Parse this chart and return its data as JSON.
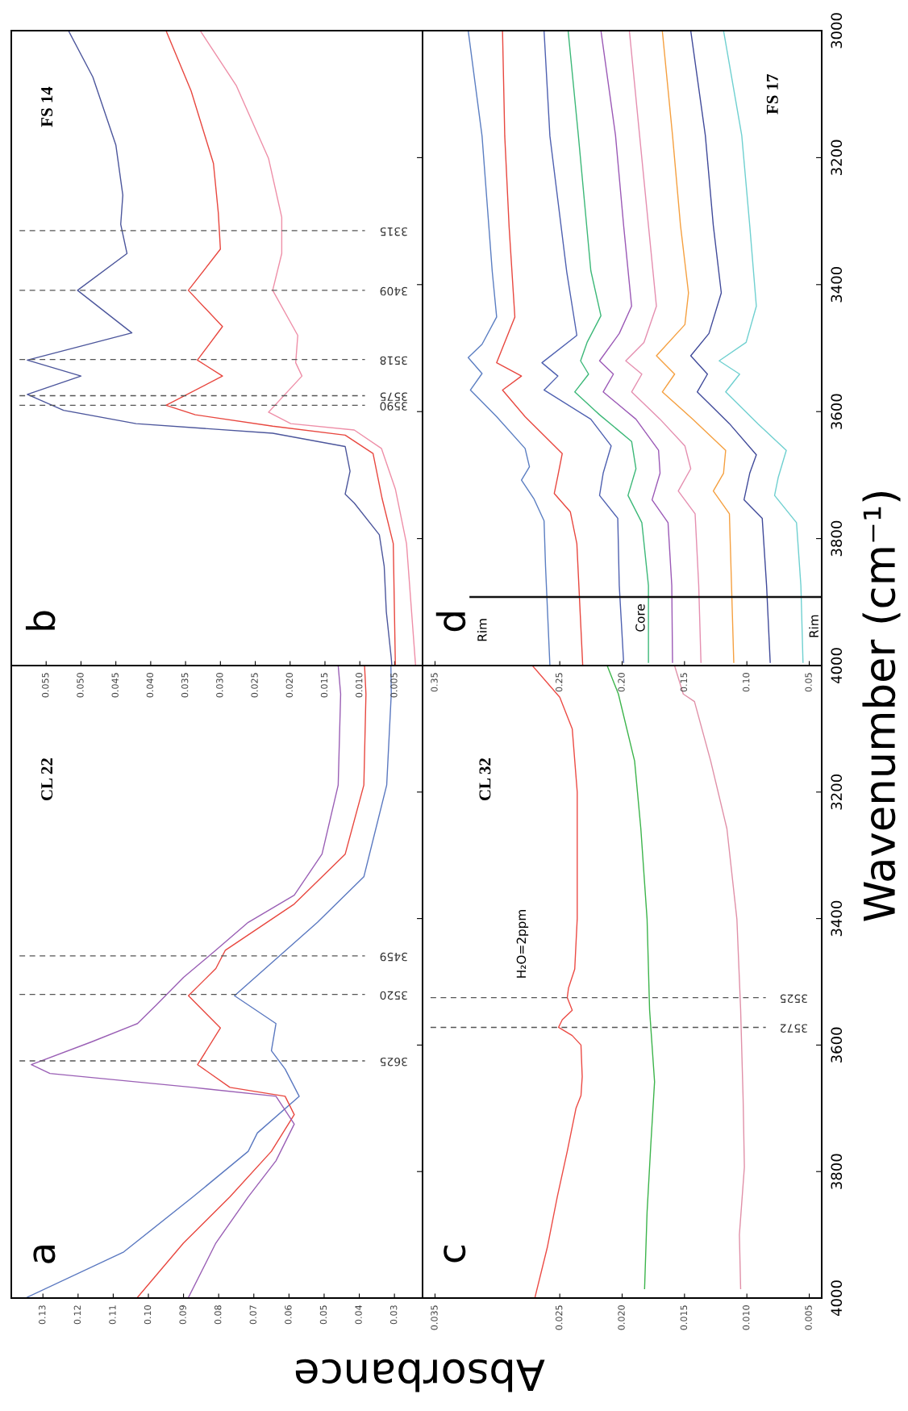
{
  "chart_data": [
    {
      "type": "line",
      "title": "CL 22",
      "ylabel": "Wavenumber (cm⁻¹)",
      "xlabel": "Absorbance",
      "annotations": [
        "a"
      ],
      "ylim": [
        4000,
        3000
      ],
      "yticks": [
        {
          "value": 3000,
          "label": null
        },
        3200,
        3400,
        3600,
        3800,
        4000
      ],
      "xlim": [
        0.139,
        0.022
      ],
      "xticks": [
        0.13,
        0.12,
        0.11,
        {
          "value": 0.1,
          "label": "0.10"
        },
        0.09,
        0.08,
        0.07,
        0.06,
        0.05,
        0.04,
        0.03
      ],
      "tick_labels": "x",
      "grid": false,
      "ref_lines": [
        {
          "axis": "y",
          "value": 3625,
          "label": "3625",
          "color": "#555555",
          "line_style": "dashed"
        },
        {
          "axis": "y",
          "value": 3520,
          "label": "3520",
          "color": "#555555",
          "line_style": "dashed"
        },
        {
          "axis": "y",
          "value": 3459,
          "label": "3459",
          "color": "#555555",
          "line_style": "dashed"
        }
      ],
      "series": [
        {
          "color": "#5a78c0",
          "values": [
            3000,
            3045,
            3189,
            3334,
            3406,
            3464,
            3522,
            3566,
            3609,
            3638,
            3681,
            3739,
            3768,
            3840,
            3927,
            3999
          ],
          "x": [
            0.031,
            0.0309,
            0.0322,
            0.0387,
            0.0519,
            0.0637,
            0.0755,
            0.0637,
            0.065,
            0.0611,
            0.0571,
            0.069,
            0.0716,
            0.0873,
            0.107,
            0.1346
          ]
        },
        {
          "color": "#e8473f",
          "values": [
            3000,
            3045,
            3189,
            3298,
            3377,
            3450,
            3479,
            3522,
            3573,
            3631,
            3667,
            3681,
            3710,
            3768,
            3840,
            3913,
            3999
          ],
          "x": [
            0.0385,
            0.0381,
            0.0387,
            0.044,
            0.0585,
            0.0781,
            0.0808,
            0.0886,
            0.0795,
            0.086,
            0.0768,
            0.0611,
            0.0585,
            0.065,
            0.0768,
            0.09,
            0.1031
          ]
        },
        {
          "color": "#9a5fb5",
          "values": [
            3000,
            3045,
            3189,
            3298,
            3363,
            3406,
            3450,
            3493,
            3537,
            3566,
            3595,
            3631,
            3645,
            3667,
            3681,
            3725,
            3783,
            3840,
            3913,
            3999
          ],
          "x": [
            0.046,
            0.0453,
            0.046,
            0.0506,
            0.0585,
            0.0716,
            0.0808,
            0.09,
            0.0978,
            0.1031,
            0.1162,
            0.1333,
            0.128,
            0.0873,
            0.0637,
            0.0585,
            0.0637,
            0.0716,
            0.0808,
            0.0886
          ]
        }
      ]
    },
    {
      "type": "line",
      "title": "FS 14",
      "annotations": [
        "b"
      ],
      "ylim": [
        4000,
        3000
      ],
      "yticks": [
        3000,
        3200,
        3400,
        3600,
        3800,
        4000
      ],
      "xlim": [
        0.06,
        0.001
      ],
      "xticks": [
        0.055,
        {
          "value": 0.05,
          "label": "0.050"
        },
        0.045,
        {
          "value": 0.04,
          "label": "0.040"
        },
        0.035,
        {
          "value": 0.03,
          "label": "0.030"
        },
        0.025,
        {
          "value": 0.02,
          "label": "0.020"
        },
        0.015,
        {
          "value": 0.01,
          "label": "0.010"
        },
        0.005
      ],
      "tick_labels": "x",
      "grid": false,
      "ref_lines": [
        {
          "axis": "y",
          "value": 3315,
          "label": "3315",
          "color": "#555555",
          "line_style": "dashed"
        },
        {
          "axis": "y",
          "value": 3409,
          "label": "3409",
          "color": "#555555",
          "line_style": "dashed"
        },
        {
          "axis": "y",
          "value": 3518,
          "label": "3518",
          "color": "#555555",
          "line_style": "dashed"
        },
        {
          "axis": "y",
          "value": 3575,
          "label": "3575",
          "color": "#555555",
          "line_style": "dashed"
        },
        {
          "axis": "y",
          "value": 3590,
          "label": "3590",
          "color": "#555555",
          "line_style": "dashed"
        }
      ],
      "series": [
        {
          "color": "#4c569c",
          "values": [
            3000,
            3073,
            3180,
            3259,
            3305,
            3351,
            3409,
            3476,
            3519,
            3544,
            3573,
            3598,
            3619,
            3634,
            3655,
            3694,
            3730,
            3744,
            3794,
            3844,
            3915,
            3987,
            4000
          ],
          "x": [
            0.0518,
            0.0483,
            0.045,
            0.044,
            0.0443,
            0.0434,
            0.0505,
            0.0427,
            0.0577,
            0.05,
            0.0577,
            0.0525,
            0.0421,
            0.0225,
            0.0121,
            0.0114,
            0.0121,
            0.0108,
            0.0072,
            0.0065,
            0.0062,
            0.0055,
            0.0054
          ]
        },
        {
          "color": "#e8473f",
          "values": [
            3000,
            3095,
            3209,
            3287,
            3344,
            3409,
            3466,
            3519,
            3544,
            3590,
            3605,
            3623,
            3637,
            3666,
            3737,
            3808,
            4000
          ],
          "x": [
            0.0378,
            0.0342,
            0.031,
            0.0303,
            0.03,
            0.0346,
            0.0297,
            0.0333,
            0.0297,
            0.0378,
            0.0336,
            0.0225,
            0.0121,
            0.0081,
            0.0068,
            0.0052,
            0.0049
          ]
        },
        {
          "color": "#ee8fa8",
          "values": [
            3000,
            3087,
            3201,
            3294,
            3351,
            3409,
            3480,
            3523,
            3544,
            3601,
            3619,
            3629,
            3658,
            3722,
            3808,
            4000
          ],
          "x": [
            0.0329,
            0.0277,
            0.0231,
            0.0212,
            0.0212,
            0.0225,
            0.0189,
            0.0192,
            0.0183,
            0.0231,
            0.0199,
            0.0108,
            0.0069,
            0.0049,
            0.0033,
            0.002
          ]
        }
      ]
    },
    {
      "type": "line",
      "title": "CL 32",
      "annotations": [
        "c",
        "H₂O=2ppm"
      ],
      "ylim": [
        4000,
        3000
      ],
      "yticks": [
        {
          "value": 3000,
          "label": null
        },
        3200,
        3400,
        3600,
        3800,
        4000
      ],
      "xlim": [
        0.036,
        0.004
      ],
      "xticks": [
        0.035,
        0.025,
        {
          "value": 0.02,
          "label": "0.020"
        },
        0.015,
        {
          "value": 0.01,
          "label": "0.010"
        },
        0.005
      ],
      "grid": false,
      "ref_lines": [
        {
          "axis": "y",
          "value": 3525,
          "label": "3525",
          "color": "#555555",
          "line_style": "dashed"
        },
        {
          "axis": "y",
          "value": 3572,
          "label": "3572",
          "color": "#555555",
          "line_style": "dashed"
        }
      ],
      "series": [
        {
          "color": "#ec4b45",
          "values": [
            3000,
            3050,
            3100,
            3200,
            3300,
            3400,
            3480,
            3510,
            3525,
            3545,
            3560,
            3572,
            3585,
            3600,
            3650,
            3680,
            3700,
            3768,
            3840,
            3920,
            4000
          ],
          "x": [
            0.0272,
            0.025,
            0.024,
            0.0236,
            0.0236,
            0.0236,
            0.0238,
            0.0243,
            0.0244,
            0.024,
            0.0248,
            0.0251,
            0.024,
            0.0233,
            0.0232,
            0.0233,
            0.0237,
            0.0244,
            0.0252,
            0.026,
            0.027
          ]
        },
        {
          "color": "#3cb44b",
          "values": [
            3000,
            3045,
            3151,
            3258,
            3401,
            3544,
            3658,
            3757,
            3864,
            3985
          ],
          "x": [
            0.0212,
            0.0203,
            0.019,
            0.0185,
            0.018,
            0.0178,
            0.0174,
            0.0177,
            0.018,
            0.0182
          ]
        },
        {
          "color": "#e090a8",
          "values": [
            3000,
            3045,
            3057,
            3151,
            3258,
            3401,
            3544,
            3686,
            3793,
            3900,
            3985
          ],
          "x": [
            0.0158,
            0.0151,
            0.0142,
            0.0129,
            0.0116,
            0.0108,
            0.0105,
            0.0103,
            0.0102,
            0.0106,
            0.0105
          ]
        }
      ]
    },
    {
      "type": "line",
      "title": "FS 17",
      "annotations": [
        "d",
        "Rim",
        "Core",
        "Rim"
      ],
      "ylim": [
        4000,
        3000
      ],
      "yticks": [
        3000,
        3200,
        3400,
        3600,
        3800,
        4000
      ],
      "xlim": [
        0.36,
        0.04
      ],
      "xticks": [
        0.35,
        0.25,
        {
          "value": 0.2,
          "label": "0.20"
        },
        0.15,
        {
          "value": 0.1,
          "label": "0.10"
        },
        0.05
      ],
      "grid": false,
      "ref_lines": [
        {
          "axis": "y",
          "value": 3892,
          "color": "#111111",
          "line_style": "solid"
        }
      ],
      "series": [
        {
          "color": "#5b7ec2",
          "values": [
            3000,
            3166,
            3380,
            3451,
            3494,
            3515,
            3540,
            3566,
            3608,
            3658,
            3687,
            3708,
            3737,
            3772,
            3844,
            4000
          ],
          "x": [
            0.3234,
            0.3123,
            0.3041,
            0.3006,
            0.3123,
            0.3234,
            0.3123,
            0.3216,
            0.3006,
            0.2778,
            0.2743,
            0.2807,
            0.2708,
            0.2626,
            0.2614,
            0.2579
          ]
        },
        {
          "color": "#e8473f",
          "values": [
            3000,
            3166,
            3309,
            3451,
            3523,
            3544,
            3566,
            3608,
            3666,
            3701,
            3729,
            3758,
            3808,
            4000
          ],
          "x": [
            0.2959,
            0.2941,
            0.2906,
            0.286,
            0.3006,
            0.2807,
            0.2959,
            0.2778,
            0.248,
            0.2515,
            0.2544,
            0.2415,
            0.2363,
            0.2316
          ]
        },
        {
          "color": "#4e60b0",
          "values": [
            3000,
            3166,
            3380,
            3480,
            3523,
            3544,
            3566,
            3612,
            3654,
            3697,
            3732,
            3768,
            3874,
            3995
          ],
          "x": [
            0.2626,
            0.2579,
            0.2444,
            0.2363,
            0.2643,
            0.2515,
            0.2626,
            0.2251,
            0.2088,
            0.2152,
            0.2181,
            0.2035,
            0.2023,
            0.1988
          ]
        },
        {
          "color": "#3cb878",
          "values": [
            3000,
            3165,
            3378,
            3449,
            3491,
            3520,
            3541,
            3569,
            3605,
            3647,
            3690,
            3732,
            3775,
            3874,
            3995
          ],
          "x": [
            0.2433,
            0.2351,
            0.2251,
            0.217,
            0.2281,
            0.2333,
            0.2269,
            0.238,
            0.2181,
            0.1924,
            0.1889,
            0.1953,
            0.1842,
            0.1789,
            0.1789
          ]
        },
        {
          "color": "#9b59b6",
          "values": [
            3000,
            3165,
            3307,
            3434,
            3477,
            3520,
            3541,
            3569,
            3612,
            3661,
            3697,
            3739,
            3775,
            3874,
            3995
          ],
          "x": [
            0.217,
            0.2053,
            0.1988,
            0.1924,
            0.2023,
            0.2181,
            0.207,
            0.2152,
            0.1889,
            0.1708,
            0.1696,
            0.176,
            0.1632,
            0.1602,
            0.1596
          ]
        },
        {
          "color": "#e58fb0",
          "values": [
            3000,
            3165,
            3307,
            3434,
            3491,
            3520,
            3541,
            3569,
            3612,
            3654,
            3690,
            3725,
            3761,
            3874,
            3995
          ],
          "x": [
            0.1942,
            0.186,
            0.1789,
            0.1725,
            0.1825,
            0.1971,
            0.1842,
            0.1924,
            0.1696,
            0.1497,
            0.145,
            0.155,
            0.1415,
            0.1386,
            0.1368
          ]
        },
        {
          "color": "#f5a040",
          "values": [
            3000,
            3165,
            3307,
            3413,
            3463,
            3512,
            3541,
            3569,
            3612,
            3661,
            3697,
            3725,
            3761,
            3874,
            3995
          ],
          "x": [
            0.1678,
            0.1596,
            0.1532,
            0.1468,
            0.1497,
            0.1725,
            0.1579,
            0.1678,
            0.1433,
            0.117,
            0.1187,
            0.1269,
            0.114,
            0.1123,
            0.1105
          ]
        },
        {
          "color": "#404a9a",
          "values": [
            3000,
            3165,
            3307,
            3413,
            3477,
            3512,
            3541,
            3569,
            3619,
            3668,
            3697,
            3739,
            3768,
            3874,
            3995
          ],
          "x": [
            0.145,
            0.1333,
            0.1269,
            0.1205,
            0.1304,
            0.145,
            0.1316,
            0.1398,
            0.114,
            0.0924,
            0.0977,
            0.1023,
            0.0877,
            0.0842,
            0.0813
          ]
        },
        {
          "color": "#6fd0d0",
          "values": [
            3000,
            3165,
            3307,
            3434,
            3491,
            3520,
            3541,
            3569,
            3619,
            3661,
            3704,
            3732,
            3775,
            3874,
            3995
          ],
          "x": [
            0.1187,
            0.1041,
            0.0977,
            0.0924,
            0.1006,
            0.1222,
            0.1058,
            0.117,
            0.0912,
            0.0684,
            0.0749,
            0.0778,
            0.0602,
            0.0567,
            0.055
          ]
        }
      ]
    }
  ]
}
